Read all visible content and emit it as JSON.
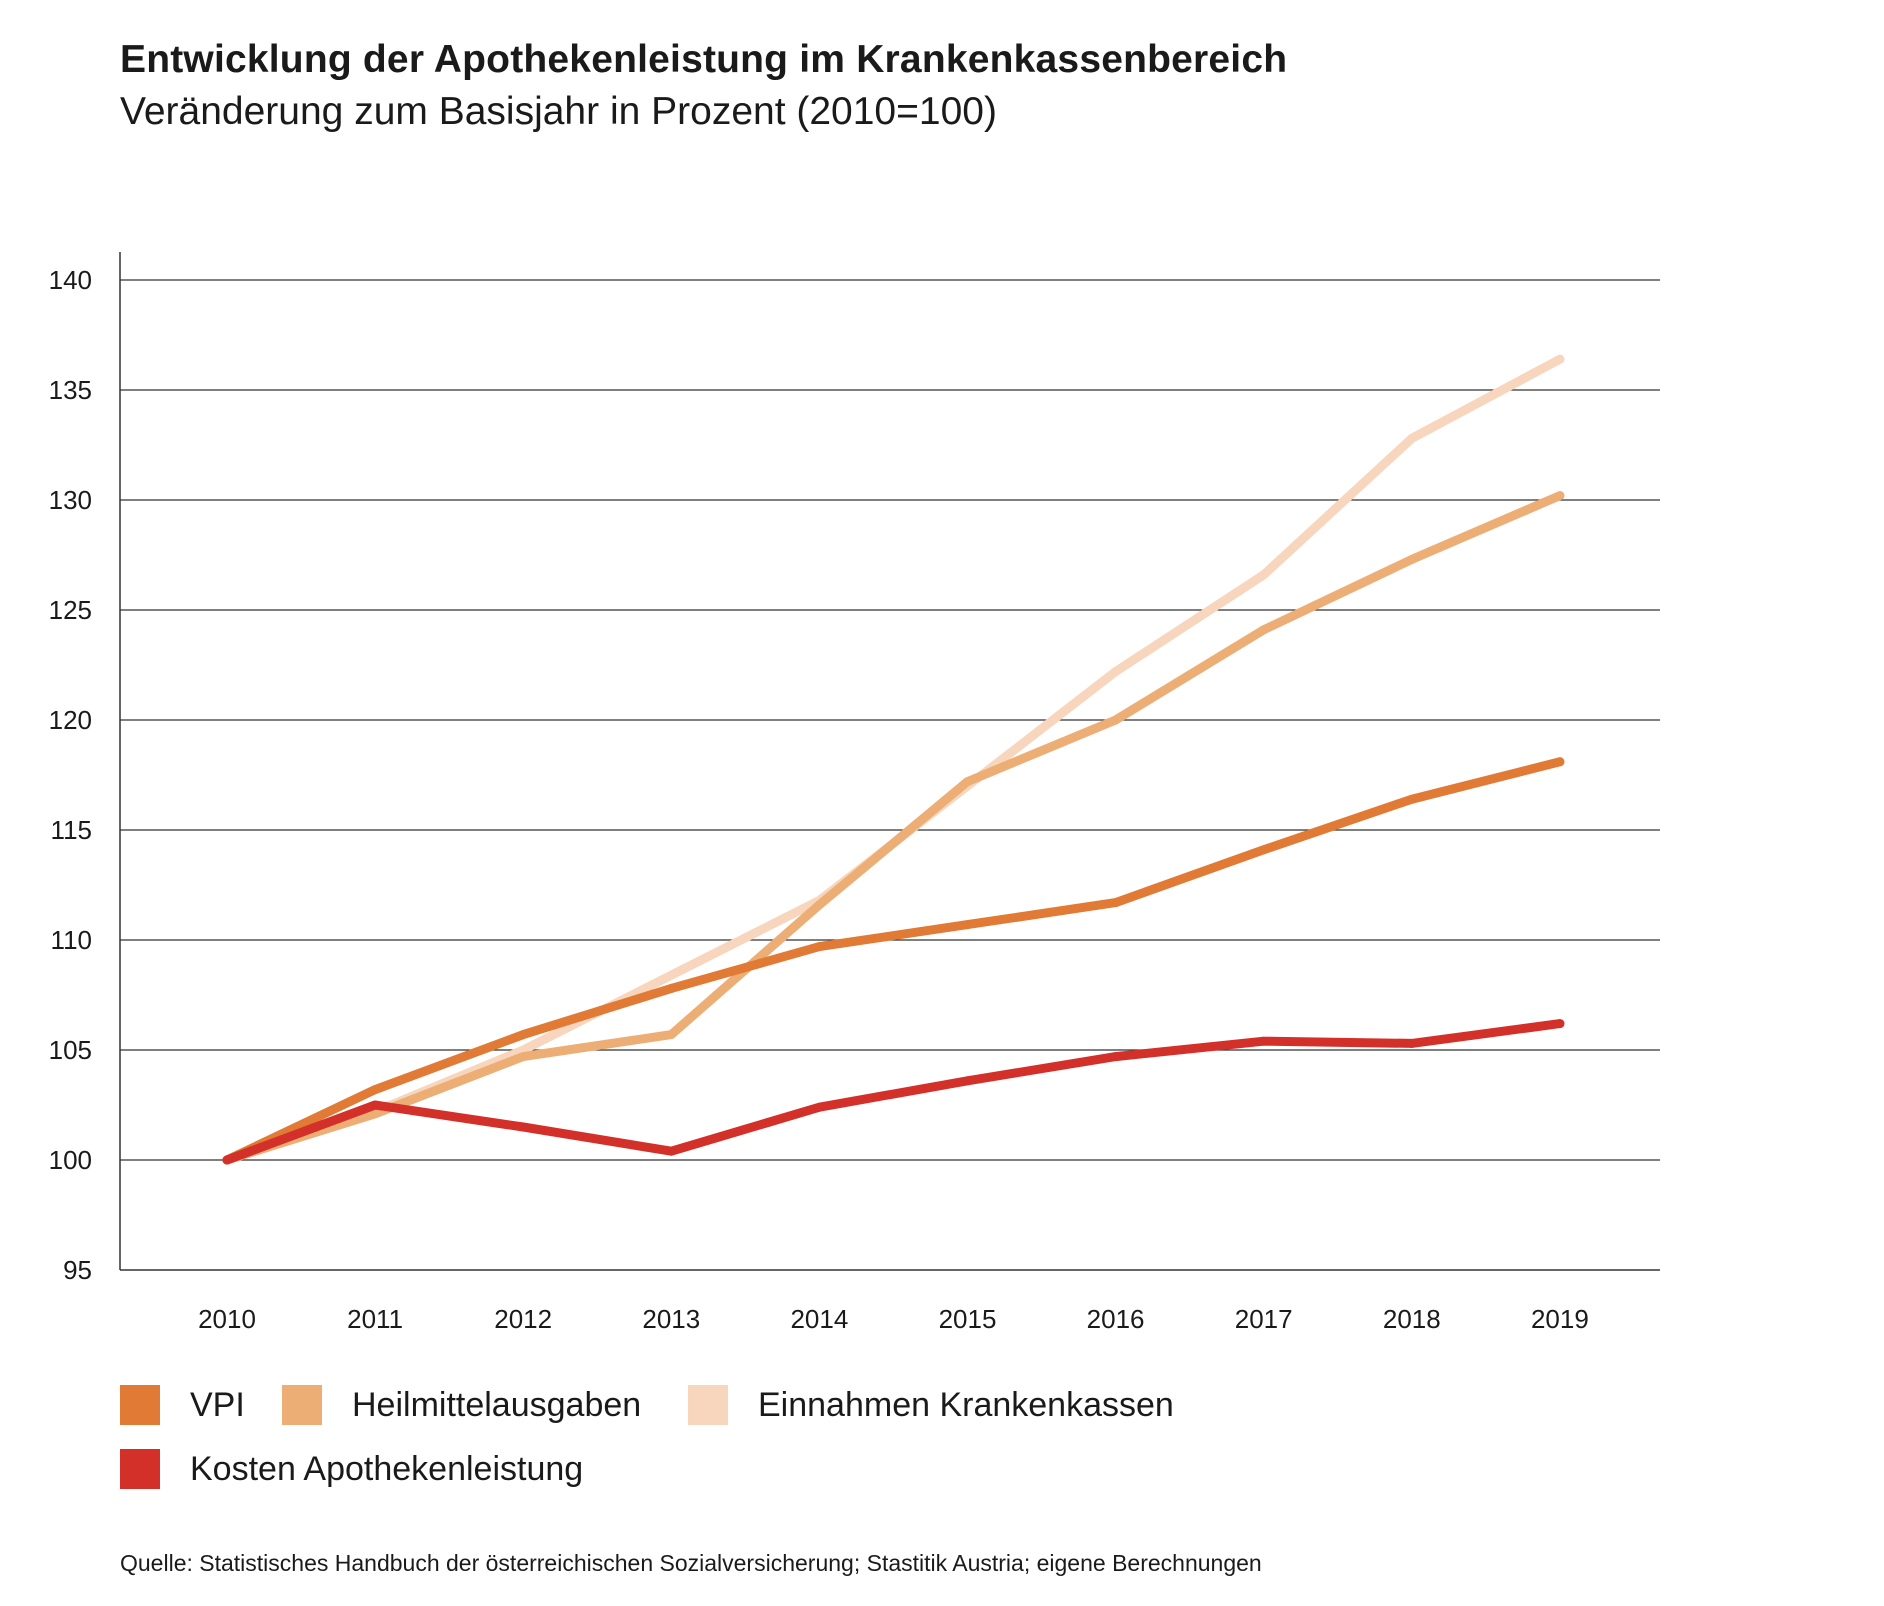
{
  "header": {
    "title": "Entwicklung der Apothekenleistung im Krankenkassenbereich",
    "subtitle": "Veränderung zum Basisjahr in Prozent (2010=100)"
  },
  "legend": {
    "items": [
      {
        "label": "VPI",
        "color": "#e07a35"
      },
      {
        "label": "Heilmittelausgaben",
        "color": "#edae75"
      },
      {
        "label": "Einnahmen Krankenkassen",
        "color": "#f7d6bd"
      },
      {
        "label": "Kosten Apothekenleistung",
        "color": "#d3302a"
      }
    ]
  },
  "source": {
    "text": "Quelle: Statistisches Handbuch der österreichischen Sozialversicherung; Stastitik Austria; eigene Berechnungen"
  },
  "chart_data": {
    "type": "line",
    "title": "Entwicklung der Apothekenleistung im Krankenkassenbereich",
    "subtitle": "Veränderung zum Basisjahr in Prozent (2010=100)",
    "xlabel": "",
    "ylabel": "",
    "categories": [
      "2010",
      "2011",
      "2012",
      "2013",
      "2014",
      "2015",
      "2016",
      "2017",
      "2018",
      "2019"
    ],
    "ylim": [
      95,
      140
    ],
    "yticks": [
      95,
      100,
      105,
      110,
      115,
      120,
      125,
      130,
      135,
      140
    ],
    "grid": true,
    "legend_position": "bottom",
    "series": [
      {
        "name": "Einnahmen Krankenkassen",
        "color": "#f7d6bd",
        "values": [
          100.0,
          102.2,
          105.0,
          108.4,
          111.8,
          117.0,
          122.2,
          126.6,
          132.8,
          136.4
        ]
      },
      {
        "name": "Heilmittelausgaben",
        "color": "#edae75",
        "values": [
          100.0,
          102.1,
          104.7,
          105.7,
          111.6,
          117.2,
          120.0,
          124.1,
          127.3,
          130.2
        ]
      },
      {
        "name": "VPI",
        "color": "#e07a35",
        "values": [
          100.0,
          103.2,
          105.7,
          107.8,
          109.7,
          110.7,
          111.7,
          114.1,
          116.4,
          118.1
        ]
      },
      {
        "name": "Kosten Apothekenleistung",
        "color": "#d3302a",
        "values": [
          100.0,
          102.5,
          101.5,
          100.4,
          102.4,
          103.6,
          104.7,
          105.4,
          105.3,
          106.2
        ]
      }
    ]
  }
}
